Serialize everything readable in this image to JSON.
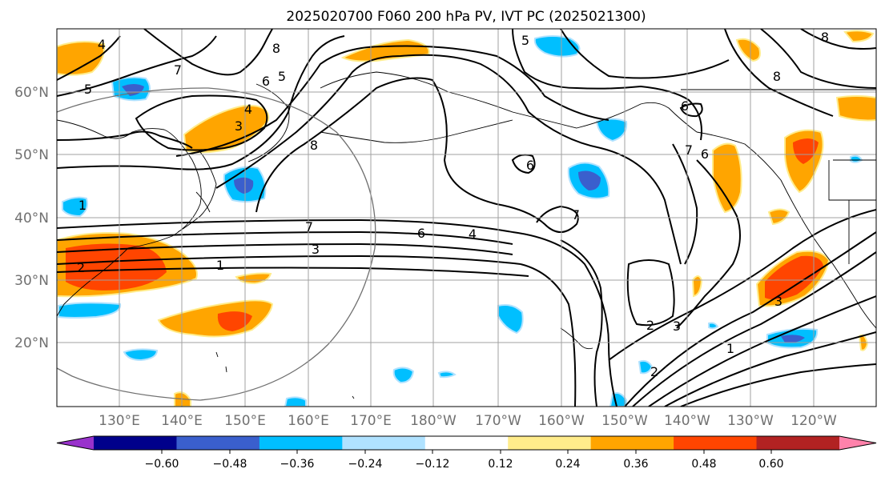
{
  "title": "2025020700 F060 200 hPa PV, IVT PC (2025021300)",
  "lat_labels": [
    "60°N",
    "50°N",
    "40°N",
    "30°N",
    "20°N"
  ],
  "lon_labels": [
    "130°E",
    "140°E",
    "150°E",
    "160°E",
    "170°E",
    "180°W",
    "170°W",
    "160°W",
    "150°W",
    "140°W",
    "130°W",
    "120°W"
  ],
  "colorbar": {
    "colors": [
      "#9932cc",
      "#00008b",
      "#3a5fcd",
      "#00bfff",
      "#b0e2ff",
      "#ffffff",
      "#ffec8b",
      "#ffa500",
      "#ff4500",
      "#b22222",
      "#ff82ab"
    ],
    "tick_labels": [
      "−0.60",
      "−0.48",
      "−0.36",
      "−0.24",
      "−0.12",
      "0.12",
      "0.24",
      "0.36",
      "0.48",
      "0.60"
    ]
  },
  "contour_labels": [
    "4",
    "5",
    "8",
    "5",
    "6",
    "7",
    "4",
    "3",
    "8",
    "1",
    "7",
    "6",
    "7",
    "6",
    "4",
    "3",
    "1",
    "2",
    "5",
    "6",
    "7",
    "8",
    "6",
    "3",
    "2",
    "3",
    "1",
    "8",
    "2"
  ],
  "map": {
    "region": "North Pacific",
    "contour_color": "#000000",
    "coast_color": "#000000",
    "grid_color": "#a0a0a0"
  }
}
